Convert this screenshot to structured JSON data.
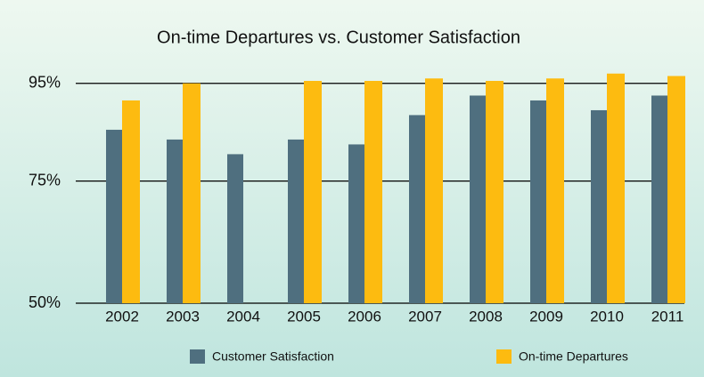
{
  "chart_data": {
    "type": "bar",
    "title": "On-time Departures vs. Customer Satisfaction",
    "categories": [
      "2002",
      "2003",
      "2004",
      "2005",
      "2006",
      "2007",
      "2008",
      "2009",
      "2010",
      "2011"
    ],
    "series": [
      {
        "name": "Customer Satisfaction",
        "color": "#4f6f7f",
        "values": [
          85.5,
          83.5,
          80.5,
          83.5,
          82.5,
          88.5,
          92.5,
          91.5,
          89.5,
          92.5
        ]
      },
      {
        "name": "On-time Departures",
        "color": "#fdbb10",
        "values": [
          91.5,
          95,
          null,
          95.5,
          95.5,
          96,
          95.5,
          96,
          97,
          96.5
        ]
      }
    ],
    "ylim": [
      50,
      97.5
    ],
    "yticks": [
      {
        "value": 50,
        "label": "50%"
      },
      {
        "value": 75,
        "label": "75%"
      },
      {
        "value": 95,
        "label": "95%"
      }
    ],
    "grid": true
  }
}
